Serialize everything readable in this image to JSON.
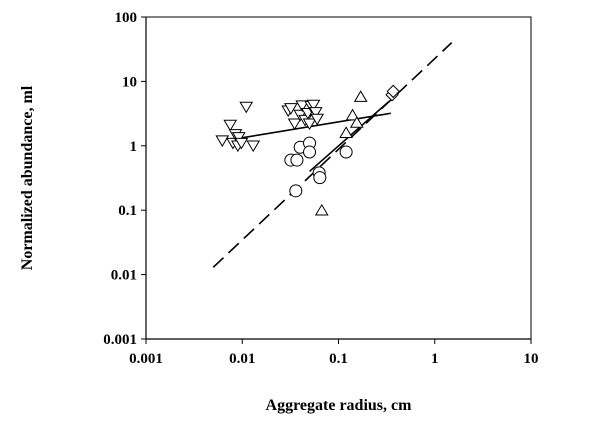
{
  "chart_data": {
    "type": "scatter",
    "xscale": "log",
    "yscale": "log",
    "xlim": [
      0.001,
      10
    ],
    "ylim": [
      0.001,
      100
    ],
    "xlabel": "Aggregate radius, cm",
    "ylabel": "Normalized abundance, ml",
    "x_ticks": [
      "0.001",
      "0.01",
      "0.1",
      "1",
      "10"
    ],
    "y_ticks": [
      "0.001",
      "0.01",
      "0.1",
      "1",
      "10",
      "100"
    ],
    "grid": false,
    "legend": "none",
    "series": [
      {
        "marker": "triangle-down",
        "points": [
          [
            0.0062,
            1.2
          ],
          [
            0.0075,
            2.1
          ],
          [
            0.008,
            1.1
          ],
          [
            0.0085,
            1.5
          ],
          [
            0.009,
            1.0
          ],
          [
            0.0092,
            1.35
          ],
          [
            0.0098,
            1.1
          ],
          [
            0.011,
            4.0
          ],
          [
            0.013,
            1.0
          ],
          [
            0.03,
            3.5
          ],
          [
            0.032,
            3.8
          ],
          [
            0.035,
            2.2
          ],
          [
            0.04,
            3.0
          ],
          [
            0.042,
            4.2
          ],
          [
            0.045,
            2.5
          ],
          [
            0.048,
            3.2
          ],
          [
            0.05,
            2.2
          ],
          [
            0.052,
            4.1
          ],
          [
            0.055,
            4.3
          ],
          [
            0.058,
            3.3
          ],
          [
            0.06,
            2.6
          ]
        ]
      },
      {
        "marker": "circle",
        "points": [
          [
            0.032,
            0.6
          ],
          [
            0.036,
            0.2
          ],
          [
            0.037,
            0.6
          ],
          [
            0.04,
            0.95
          ],
          [
            0.05,
            1.1
          ],
          [
            0.05,
            0.8
          ],
          [
            0.063,
            0.38
          ],
          [
            0.064,
            0.32
          ],
          [
            0.12,
            0.8
          ]
        ]
      },
      {
        "marker": "triangle-up",
        "points": [
          [
            0.067,
            0.1
          ],
          [
            0.12,
            1.6
          ],
          [
            0.14,
            3.0
          ],
          [
            0.155,
            2.3
          ],
          [
            0.17,
            5.8
          ]
        ]
      },
      {
        "marker": "diamond",
        "points": [
          [
            0.36,
            6.2
          ],
          [
            0.37,
            7.0
          ]
        ]
      }
    ],
    "fit_lines": [
      {
        "style": "solid",
        "x": [
          0.009,
          0.35
        ],
        "y": [
          1.3,
          3.2
        ]
      },
      {
        "style": "solid",
        "x": [
          0.05,
          0.33
        ],
        "y": [
          0.4,
          4.8
        ]
      },
      {
        "style": "dashed",
        "x": [
          0.005,
          1.5
        ],
        "y": [
          0.013,
          40
        ]
      }
    ]
  }
}
